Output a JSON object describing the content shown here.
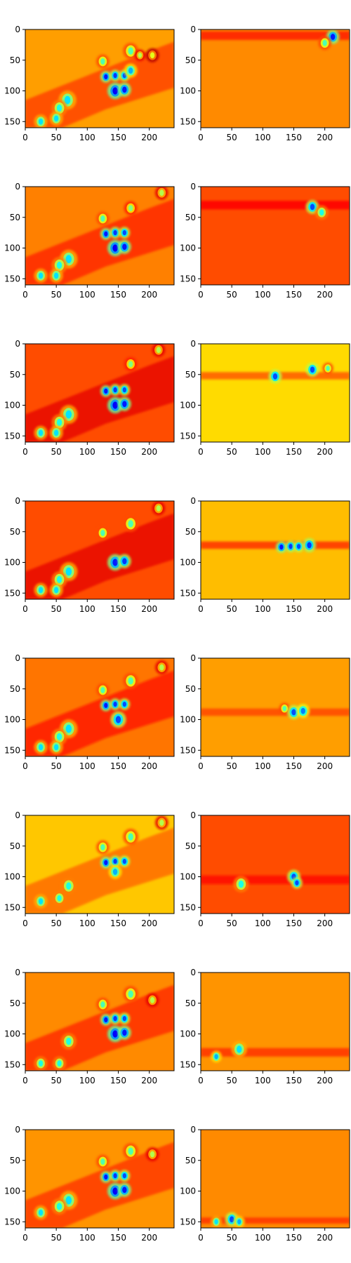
{
  "figure": {
    "rows": 8,
    "cols": 2
  },
  "chart_data": {
    "type": "heatmap",
    "colormap": "jet",
    "xlim": [
      0,
      240
    ],
    "ylim": [
      160,
      0
    ],
    "xticks": [
      0,
      50,
      100,
      150,
      200
    ],
    "yticks": [
      0,
      50,
      100,
      150
    ],
    "xtick_labels": [
      "0",
      "50",
      "100",
      "150",
      "200"
    ],
    "ytick_labels": [
      "0",
      "50",
      "100",
      "150"
    ],
    "grid": false,
    "legend": "none",
    "panels": [
      {
        "row": 0,
        "col": 0,
        "bg": 0.72,
        "band": null,
        "blobs": [
          [
            125,
            52,
            0.45,
            6
          ],
          [
            170,
            35,
            0.45,
            7
          ],
          [
            185,
            42,
            0.55,
            5
          ],
          [
            130,
            77,
            0.15,
            5
          ],
          [
            145,
            75,
            0.18,
            5
          ],
          [
            160,
            75,
            0.2,
            5
          ],
          [
            145,
            100,
            0.12,
            7
          ],
          [
            160,
            98,
            0.15,
            6
          ],
          [
            170,
            67,
            0.3,
            6
          ],
          [
            68,
            115,
            0.35,
            8
          ],
          [
            55,
            128,
            0.4,
            7
          ],
          [
            50,
            145,
            0.35,
            6
          ],
          [
            25,
            150,
            0.35,
            6
          ],
          [
            205,
            42,
            0.6,
            6
          ]
        ],
        "diag": true
      },
      {
        "row": 0,
        "col": 1,
        "bg": 0.74,
        "band": [
          10,
          14,
          0.84
        ],
        "blobs": [
          [
            213,
            12,
            0.15,
            6
          ],
          [
            200,
            22,
            0.45,
            6
          ]
        ],
        "diag": false
      },
      {
        "row": 1,
        "col": 0,
        "bg": 0.75,
        "band": null,
        "blobs": [
          [
            125,
            52,
            0.45,
            6
          ],
          [
            170,
            35,
            0.5,
            6
          ],
          [
            220,
            10,
            0.55,
            6
          ],
          [
            130,
            77,
            0.15,
            5
          ],
          [
            145,
            75,
            0.18,
            5
          ],
          [
            160,
            75,
            0.2,
            5
          ],
          [
            145,
            100,
            0.12,
            7
          ],
          [
            160,
            98,
            0.15,
            6
          ],
          [
            70,
            118,
            0.35,
            8
          ],
          [
            55,
            128,
            0.4,
            7
          ],
          [
            50,
            145,
            0.35,
            6
          ],
          [
            25,
            145,
            0.35,
            6
          ]
        ],
        "diag": true
      },
      {
        "row": 1,
        "col": 1,
        "bg": 0.8,
        "band": [
          30,
          14,
          0.87
        ],
        "blobs": [
          [
            180,
            33,
            0.2,
            6
          ],
          [
            195,
            42,
            0.4,
            6
          ]
        ],
        "diag": false
      },
      {
        "row": 2,
        "col": 0,
        "bg": 0.8,
        "band": null,
        "blobs": [
          [
            170,
            33,
            0.5,
            6
          ],
          [
            215,
            10,
            0.55,
            6
          ],
          [
            130,
            77,
            0.15,
            5
          ],
          [
            145,
            75,
            0.18,
            5
          ],
          [
            160,
            75,
            0.2,
            5
          ],
          [
            145,
            100,
            0.12,
            7
          ],
          [
            160,
            98,
            0.15,
            6
          ],
          [
            70,
            115,
            0.35,
            8
          ],
          [
            55,
            128,
            0.4,
            7
          ],
          [
            50,
            145,
            0.35,
            6
          ],
          [
            25,
            145,
            0.35,
            6
          ]
        ],
        "diag": true
      },
      {
        "row": 2,
        "col": 1,
        "bg": 0.66,
        "band": [
          52,
          12,
          0.78
        ],
        "blobs": [
          [
            120,
            53,
            0.2,
            6
          ],
          [
            180,
            42,
            0.2,
            6
          ],
          [
            205,
            40,
            0.45,
            5
          ]
        ],
        "diag": false
      },
      {
        "row": 3,
        "col": 0,
        "bg": 0.8,
        "band": null,
        "blobs": [
          [
            125,
            52,
            0.45,
            6
          ],
          [
            170,
            37,
            0.45,
            7
          ],
          [
            145,
            100,
            0.15,
            7
          ],
          [
            160,
            98,
            0.18,
            6
          ],
          [
            70,
            115,
            0.35,
            8
          ],
          [
            55,
            128,
            0.4,
            7
          ],
          [
            50,
            145,
            0.35,
            6
          ],
          [
            25,
            145,
            0.35,
            6
          ],
          [
            215,
            12,
            0.55,
            6
          ]
        ],
        "diag": true
      },
      {
        "row": 3,
        "col": 1,
        "bg": 0.69,
        "band": [
          72,
          12,
          0.82
        ],
        "blobs": [
          [
            130,
            75,
            0.15,
            5
          ],
          [
            145,
            74,
            0.18,
            5
          ],
          [
            158,
            74,
            0.2,
            5
          ],
          [
            175,
            72,
            0.18,
            6
          ]
        ],
        "diag": false
      },
      {
        "row": 4,
        "col": 0,
        "bg": 0.76,
        "band": null,
        "blobs": [
          [
            125,
            52,
            0.45,
            6
          ],
          [
            170,
            37,
            0.45,
            7
          ],
          [
            130,
            77,
            0.15,
            5
          ],
          [
            145,
            75,
            0.18,
            5
          ],
          [
            160,
            75,
            0.2,
            5
          ],
          [
            150,
            100,
            0.2,
            7
          ],
          [
            70,
            115,
            0.35,
            8
          ],
          [
            55,
            128,
            0.4,
            7
          ],
          [
            50,
            145,
            0.35,
            6
          ],
          [
            25,
            145,
            0.35,
            6
          ],
          [
            220,
            15,
            0.55,
            6
          ]
        ],
        "diag": true
      },
      {
        "row": 4,
        "col": 1,
        "bg": 0.72,
        "band": [
          88,
          12,
          0.8
        ],
        "blobs": [
          [
            135,
            82,
            0.45,
            5
          ],
          [
            150,
            88,
            0.2,
            6
          ],
          [
            165,
            86,
            0.25,
            6
          ]
        ],
        "diag": false
      },
      {
        "row": 5,
        "col": 0,
        "bg": 0.68,
        "band": null,
        "blobs": [
          [
            125,
            52,
            0.45,
            6
          ],
          [
            170,
            35,
            0.45,
            7
          ],
          [
            220,
            12,
            0.55,
            6
          ],
          [
            130,
            77,
            0.15,
            5
          ],
          [
            145,
            75,
            0.18,
            5
          ],
          [
            160,
            75,
            0.2,
            5
          ],
          [
            145,
            92,
            0.3,
            6
          ],
          [
            70,
            115,
            0.4,
            7
          ],
          [
            55,
            135,
            0.4,
            6
          ],
          [
            25,
            140,
            0.35,
            6
          ]
        ],
        "diag": true
      },
      {
        "row": 5,
        "col": 1,
        "bg": 0.8,
        "band": [
          105,
          14,
          0.86
        ],
        "blobs": [
          [
            65,
            112,
            0.4,
            7
          ],
          [
            150,
            100,
            0.2,
            6
          ],
          [
            155,
            110,
            0.2,
            5
          ]
        ],
        "diag": false
      },
      {
        "row": 6,
        "col": 0,
        "bg": 0.74,
        "band": null,
        "blobs": [
          [
            125,
            52,
            0.45,
            6
          ],
          [
            170,
            35,
            0.45,
            7
          ],
          [
            130,
            77,
            0.15,
            5
          ],
          [
            145,
            75,
            0.18,
            5
          ],
          [
            160,
            75,
            0.2,
            5
          ],
          [
            145,
            100,
            0.12,
            7
          ],
          [
            160,
            98,
            0.15,
            6
          ],
          [
            70,
            112,
            0.4,
            7
          ],
          [
            55,
            148,
            0.4,
            6
          ],
          [
            25,
            148,
            0.4,
            6
          ],
          [
            205,
            45,
            0.55,
            6
          ]
        ],
        "diag": true
      },
      {
        "row": 6,
        "col": 1,
        "bg": 0.73,
        "band": [
          130,
          14,
          0.82
        ],
        "blobs": [
          [
            25,
            137,
            0.3,
            5
          ],
          [
            62,
            125,
            0.35,
            7
          ]
        ],
        "diag": false
      },
      {
        "row": 7,
        "col": 0,
        "bg": 0.73,
        "band": null,
        "blobs": [
          [
            125,
            52,
            0.45,
            6
          ],
          [
            170,
            35,
            0.45,
            7
          ],
          [
            130,
            77,
            0.15,
            5
          ],
          [
            145,
            75,
            0.18,
            5
          ],
          [
            160,
            75,
            0.2,
            5
          ],
          [
            145,
            100,
            0.12,
            7
          ],
          [
            160,
            98,
            0.15,
            6
          ],
          [
            70,
            115,
            0.35,
            8
          ],
          [
            55,
            125,
            0.4,
            7
          ],
          [
            25,
            135,
            0.35,
            6
          ],
          [
            205,
            40,
            0.55,
            6
          ]
        ],
        "diag": true
      },
      {
        "row": 7,
        "col": 1,
        "bg": 0.74,
        "band": [
          148,
          10,
          0.82
        ],
        "blobs": [
          [
            25,
            150,
            0.35,
            5
          ],
          [
            50,
            146,
            0.2,
            6
          ],
          [
            62,
            150,
            0.3,
            5
          ]
        ],
        "diag": false
      }
    ]
  }
}
